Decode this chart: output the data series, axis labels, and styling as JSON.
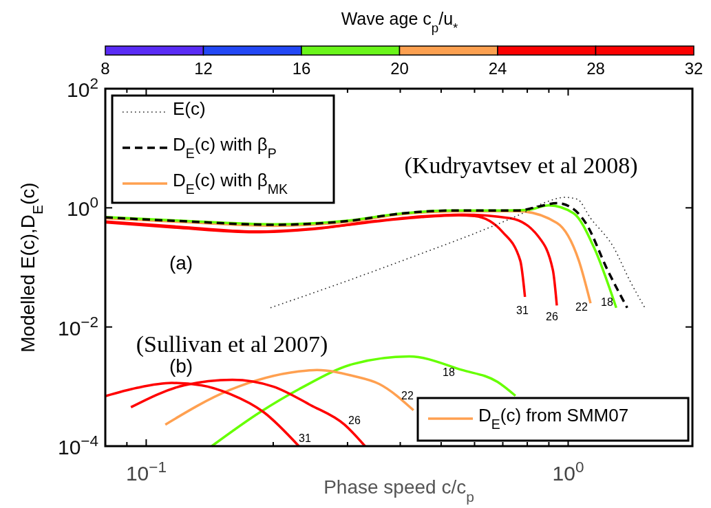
{
  "chart_data": {
    "type": "line",
    "xlabel": "Phase speed c/c$_{p}$",
    "ylabel": "Modelled E(c),D$_{E}$(c)",
    "clabel": "Wave age c$_{p}$/u$_{*}$",
    "clim": [
      8,
      32
    ],
    "cticks": [
      8,
      12,
      16,
      20,
      24,
      28,
      32
    ],
    "log": "xy",
    "xlim": [
      0.08,
      1.97
    ],
    "xticks": [
      {
        "value": 0.09,
        "label": null
      },
      {
        "value": 0.1,
        "label": "10$^{−1}$"
      },
      {
        "value": 0.2,
        "label": null
      },
      {
        "value": 0.3,
        "label": null
      },
      {
        "value": 0.4,
        "label": null
      },
      {
        "value": 0.5,
        "label": null
      },
      {
        "value": 0.6,
        "label": null
      },
      {
        "value": 0.7,
        "label": null
      },
      {
        "value": 0.8,
        "label": null
      },
      {
        "value": 0.9,
        "label": null
      },
      {
        "value": 1,
        "label": "10$^{0}$"
      }
    ],
    "ylim": [
      0.0001,
      100
    ],
    "yticks": [
      {
        "value": 0.0001,
        "label": "10$^{−4}$"
      },
      {
        "value": 0.01,
        "label": "10$^{−2}$"
      },
      {
        "value": 1,
        "label": "10$^{0}$"
      },
      {
        "value": 100,
        "label": "10$^{2}$"
      }
    ],
    "legend": "top left",
    "series": [
      {
        "name": "E(c)",
        "color": "#222222",
        "line_style": "dotted",
        "x": [
          0.197,
          0.4,
          0.78,
          0.9,
          0.98,
          1.05,
          1.13,
          1.28,
          1.4,
          1.52
        ],
        "values": [
          0.021,
          0.126,
          0.81,
          1.3,
          1.5,
          1.4,
          0.67,
          0.22,
          0.06,
          0.021
        ]
      },
      {
        "name": "D$_{E}$(c) with β$_{P}$",
        "color": "#000000",
        "line_style": "dashed",
        "x": [
          0.08,
          0.12,
          0.2,
          0.3,
          0.4,
          0.53,
          0.76,
          0.85,
          0.94,
          1.02,
          1.1,
          1.24,
          1.38
        ],
        "values": [
          0.69,
          0.6,
          0.52,
          0.6,
          0.8,
          0.9,
          0.9,
          1.05,
          1.2,
          1.0,
          0.56,
          0.09,
          0.021
        ]
      },
      {
        "color": "#66ff00",
        "line_style": "solid",
        "x": [
          0.08,
          0.12,
          0.2,
          0.3,
          0.4,
          0.53,
          0.7,
          0.8,
          0.9,
          1.03,
          1.15,
          1.3
        ],
        "values": [
          0.7,
          0.61,
          0.53,
          0.61,
          0.8,
          0.9,
          0.9,
          0.92,
          1.1,
          0.81,
          0.22,
          0.021
        ]
      },
      {
        "name": "D$_{E}$(c) with β$_{MK}$",
        "color": "#ffa050",
        "line_style": "solid",
        "x": [
          0.08,
          0.12,
          0.2,
          0.3,
          0.4,
          0.53,
          0.7,
          0.76,
          0.94,
          1.06,
          1.13
        ],
        "values": [
          0.67,
          0.58,
          0.5,
          0.58,
          0.78,
          0.87,
          0.88,
          0.88,
          0.56,
          0.13,
          0.025
        ]
      },
      {
        "color": "#ff0000",
        "line_style": "solid",
        "x": [
          0.08,
          0.12,
          0.18,
          0.25,
          0.35,
          0.45,
          0.56,
          0.73,
          0.85,
          0.92,
          0.94
        ],
        "values": [
          0.59,
          0.48,
          0.4,
          0.45,
          0.6,
          0.72,
          0.77,
          0.67,
          0.33,
          0.09,
          0.023
        ]
      },
      {
        "color": "#ff0000",
        "line_style": "solid",
        "x": [
          0.08,
          0.12,
          0.18,
          0.25,
          0.35,
          0.45,
          0.55,
          0.6,
          0.7,
          0.77,
          0.79
        ],
        "values": [
          0.57,
          0.46,
          0.39,
          0.44,
          0.59,
          0.7,
          0.75,
          0.73,
          0.39,
          0.13,
          0.032
        ]
      },
      {
        "color": "#ff0000",
        "line_style": "solid",
        "x": [
          0.08,
          0.095,
          0.115,
          0.135,
          0.158,
          0.19,
          0.23
        ],
        "values": [
          0.00069,
          0.00095,
          0.00115,
          0.00105,
          0.00075,
          0.00037,
          0.0001
        ]
      },
      {
        "color": "#ff0000",
        "line_style": "solid",
        "x": [
          0.092,
          0.123,
          0.16,
          0.2,
          0.245,
          0.295,
          0.33
        ],
        "values": [
          0.00045,
          0.00105,
          0.0013,
          0.001,
          0.00049,
          0.00023,
          0.0001
        ]
      },
      {
        "name": "D$_{E}$(c) from SMM07",
        "color": "#ffa050",
        "line_style": "solid",
        "x": [
          0.111,
          0.158,
          0.23,
          0.254,
          0.31,
          0.357,
          0.43
        ],
        "values": [
          0.00023,
          0.00088,
          0.0018,
          0.0019,
          0.0015,
          0.0011,
          0.0004
        ]
      },
      {
        "color": "#66ff00",
        "line_style": "solid",
        "x": [
          0.143,
          0.186,
          0.23,
          0.31,
          0.42,
          0.56,
          0.68,
          0.75
        ],
        "values": [
          0.0001,
          0.00037,
          0.0009,
          0.0024,
          0.0032,
          0.0019,
          0.0012,
          0.0007
        ]
      }
    ],
    "annotations": [
      "(Kudryavtsev et al 2008)",
      "(Sullivan et al 2007)",
      "(a)",
      "(b)",
      "31",
      "26",
      "22",
      "18",
      "31",
      "26",
      "22",
      "18"
    ]
  }
}
